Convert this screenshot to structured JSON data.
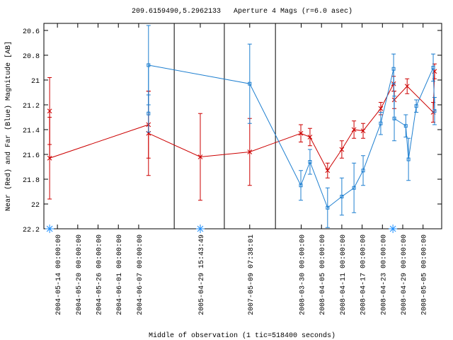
{
  "chart_data": {
    "type": "errorline",
    "title": "209.6159490,5.2962133   Aperture 4 Mags (r=6.0 asec)",
    "x_label": "Middle of observation (1 tic=518400 seconds)",
    "y_label": "Near (Red) and Far (Blue) Magnitude [AB]",
    "xlim": [
      0,
      117.5
    ],
    "ylim": [
      20.543,
      22.2
    ],
    "y_reversed": true,
    "yticks": [
      20.6,
      20.8,
      21,
      21.2,
      21.4,
      21.6,
      21.8,
      22,
      22.2
    ],
    "xticks": [
      {
        "value": 4,
        "label": "2004-05-14 00:00:00"
      },
      {
        "value": 10,
        "label": "2004-05-20 00:00:00"
      },
      {
        "value": 16,
        "label": "2004-05-26 00:00:00"
      },
      {
        "value": 22,
        "label": "2004-06-01 00:00:00"
      },
      {
        "value": 28,
        "label": "2004-06-07 00:00:00"
      },
      {
        "value": 46.2,
        "label": "2005-04-29 15:43:49"
      },
      {
        "value": 60.8,
        "label": "2007-05-09 07:38:01"
      },
      {
        "value": 76,
        "label": "2008-03-30 00:00:00"
      },
      {
        "value": 82,
        "label": "2008-04-05 00:00:00"
      },
      {
        "value": 88,
        "label": "2008-04-11 00:00:00"
      },
      {
        "value": 94,
        "label": "2008-04-17 00:00:00"
      },
      {
        "value": 100,
        "label": "2008-04-23 00:00:00"
      },
      {
        "value": 106,
        "label": "2008-04-29 00:00:00"
      },
      {
        "value": 112,
        "label": "2008-05-05 00:00:00"
      }
    ],
    "breaks": [
      38.5,
      53.3,
      68.4
    ],
    "axis_markers": {
      "color": "#1e90ff",
      "x": [
        1.7,
        46.2,
        103.1
      ]
    },
    "series": [
      {
        "color": "#cc0000",
        "marker": "cross",
        "x": [
          1.7,
          1.7,
          30.9,
          30.9,
          46.2,
          60.8,
          75.9,
          78.6,
          83.8,
          88.0,
          91.6,
          94.3,
          99.5,
          103.3,
          103.5,
          107.3,
          115.0,
          115.4
        ],
        "values": [
          21.25,
          21.63,
          21.36,
          21.43,
          21.62,
          21.58,
          21.43,
          21.46,
          21.73,
          21.56,
          21.4,
          21.41,
          21.23,
          21.03,
          21.16,
          21.05,
          21.26,
          20.93
        ],
        "errors": [
          0.27,
          0.33,
          0.27,
          0.34,
          0.35,
          0.27,
          0.07,
          0.07,
          0.06,
          0.07,
          0.07,
          0.06,
          0.05,
          0.06,
          0.07,
          0.06,
          0.08,
          0.06
        ]
      },
      {
        "color": "#1e7fd0",
        "marker": "square",
        "x": [
          30.9,
          30.9,
          60.8,
          75.9,
          78.6,
          83.8,
          88.0,
          91.6,
          94.3,
          99.5,
          103.3,
          103.5,
          106.9,
          107.7,
          110.0,
          115.0,
          115.4
        ],
        "values": [
          21.27,
          20.88,
          21.03,
          21.85,
          21.66,
          22.03,
          21.94,
          21.87,
          21.73,
          21.35,
          20.91,
          21.31,
          21.37,
          21.64,
          21.21,
          20.9,
          21.25
        ],
        "errors": [
          0.15,
          0.32,
          0.32,
          0.12,
          0.1,
          0.16,
          0.15,
          0.2,
          0.12,
          0.09,
          0.12,
          0.18,
          0.09,
          0.17,
          0.05,
          0.11,
          0.11
        ]
      }
    ]
  }
}
